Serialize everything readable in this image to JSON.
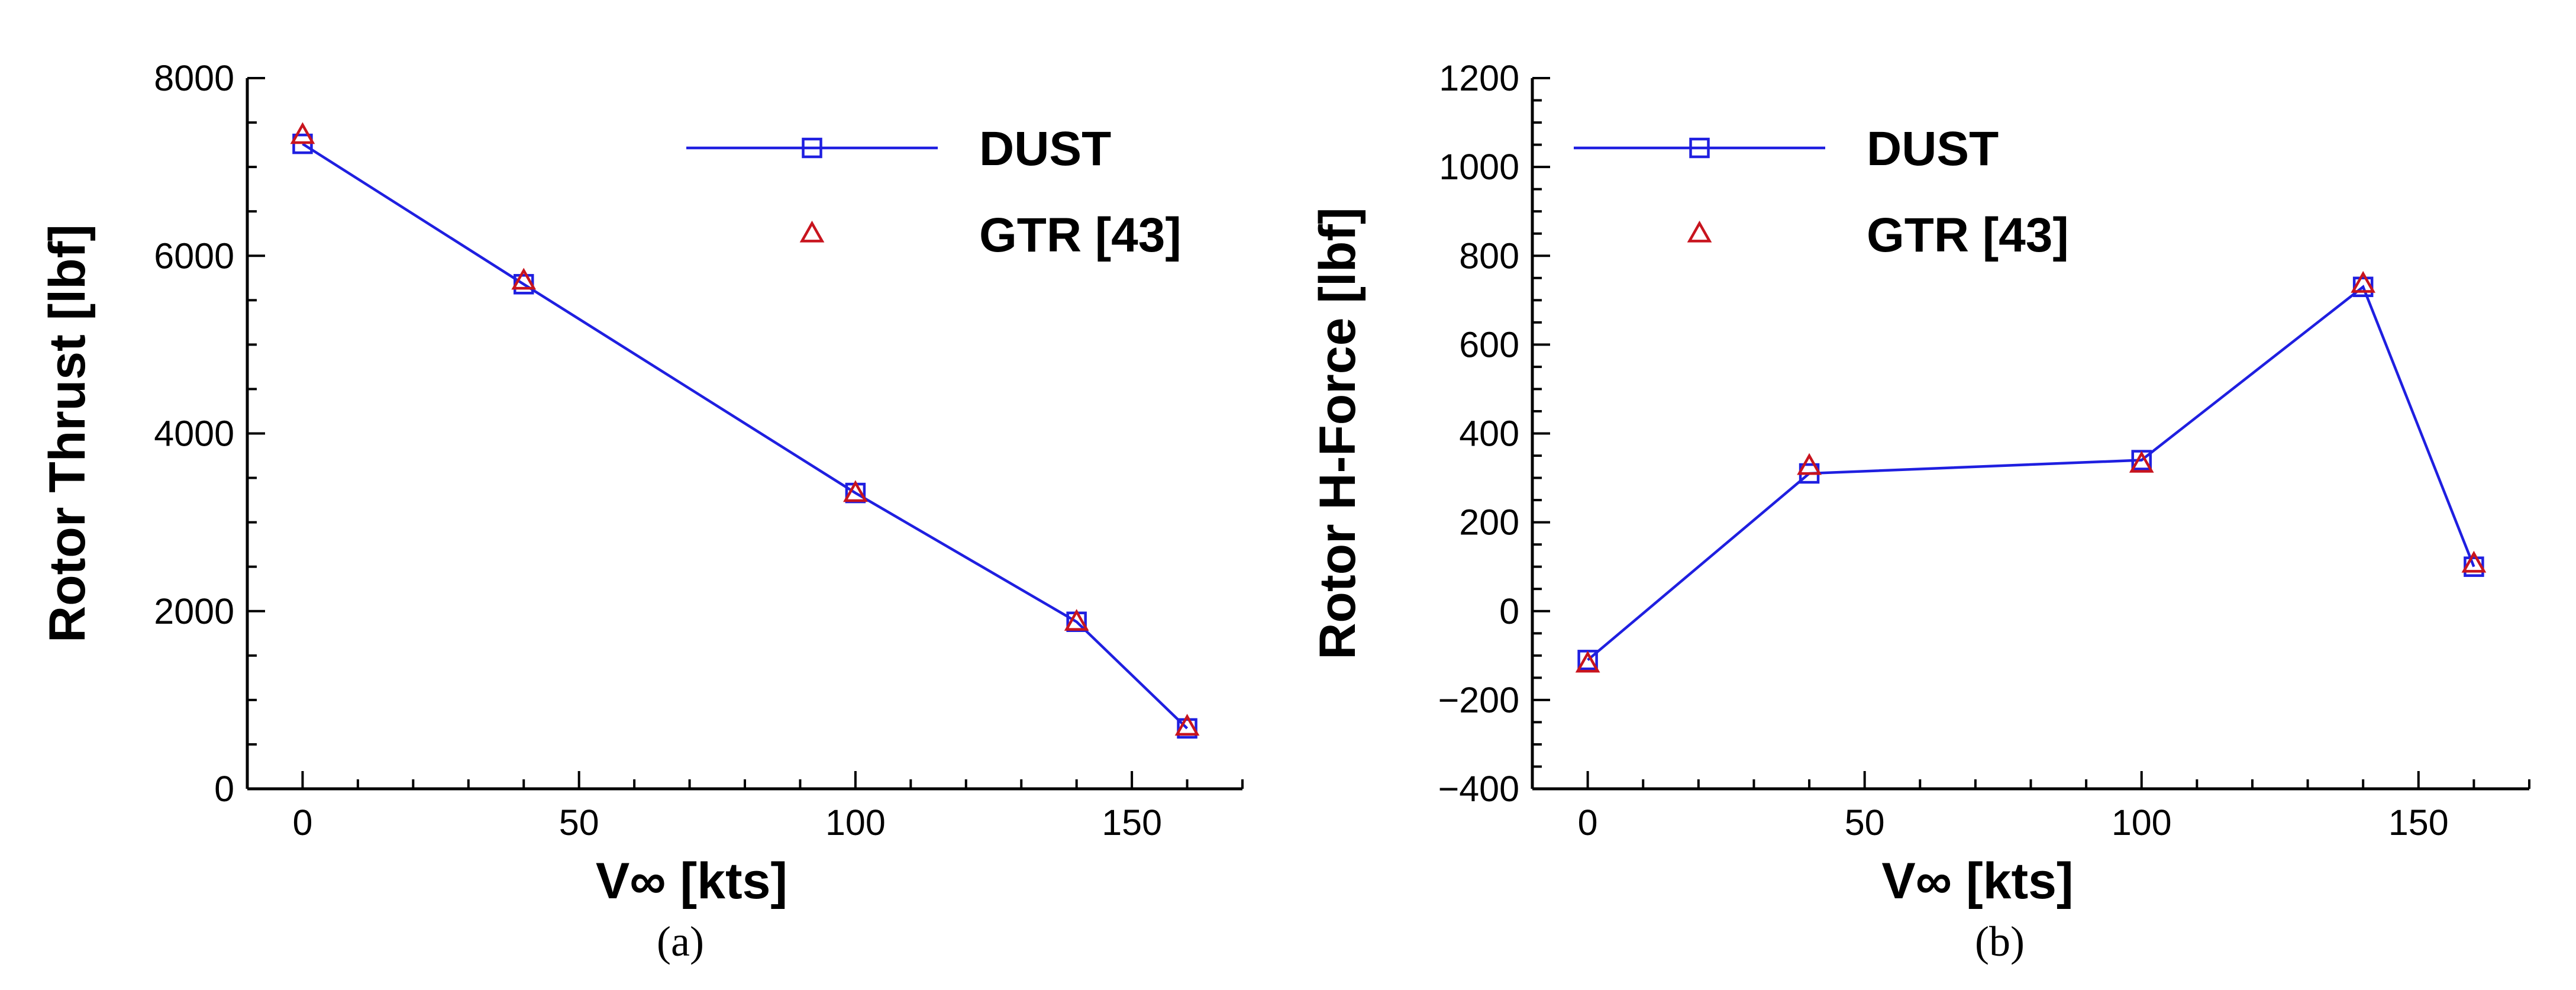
{
  "chart_data": [
    {
      "type": "line",
      "caption": "(a)",
      "x": [
        0,
        40,
        100,
        140,
        160
      ],
      "series": [
        {
          "name": "DUST",
          "values": [
            7260,
            5680,
            3330,
            1880,
            680
          ],
          "color": "#1f1fe0",
          "marker": "square",
          "line": true
        },
        {
          "name": "GTR [43]",
          "values": [
            7350,
            5710,
            3320,
            1870,
            690
          ],
          "color": "#c8141e",
          "marker": "triangle",
          "line": false
        }
      ],
      "xlabel": "V∞ [kts]",
      "ylabel": "Rotor Thrust [lbf]",
      "xlim": [
        -10,
        170
      ],
      "ylim": [
        0,
        8000
      ],
      "xticks": [
        0,
        50,
        100,
        150
      ],
      "yticks": [
        0,
        2000,
        4000,
        6000,
        8000
      ],
      "legend": "top-right",
      "grid": false
    },
    {
      "type": "line",
      "caption": "(b)",
      "x": [
        0,
        40,
        100,
        140,
        160
      ],
      "series": [
        {
          "name": "DUST",
          "values": [
            -110,
            310,
            340,
            730,
            100
          ],
          "color": "#1f1fe0",
          "marker": "square",
          "line": true
        },
        {
          "name": "GTR [43]",
          "values": [
            -120,
            325,
            330,
            735,
            105
          ],
          "color": "#c8141e",
          "marker": "triangle",
          "line": false
        }
      ],
      "xlabel": "V∞ [kts]",
      "ylabel": "Rotor H-Force [lbf]",
      "xlim": [
        -10,
        170
      ],
      "ylim": [
        -400,
        1200
      ],
      "xticks": [
        0,
        50,
        100,
        150
      ],
      "yticks": [
        -400,
        -200,
        0,
        200,
        400,
        600,
        800,
        1000,
        1200
      ],
      "legend": "top",
      "grid": false
    }
  ]
}
